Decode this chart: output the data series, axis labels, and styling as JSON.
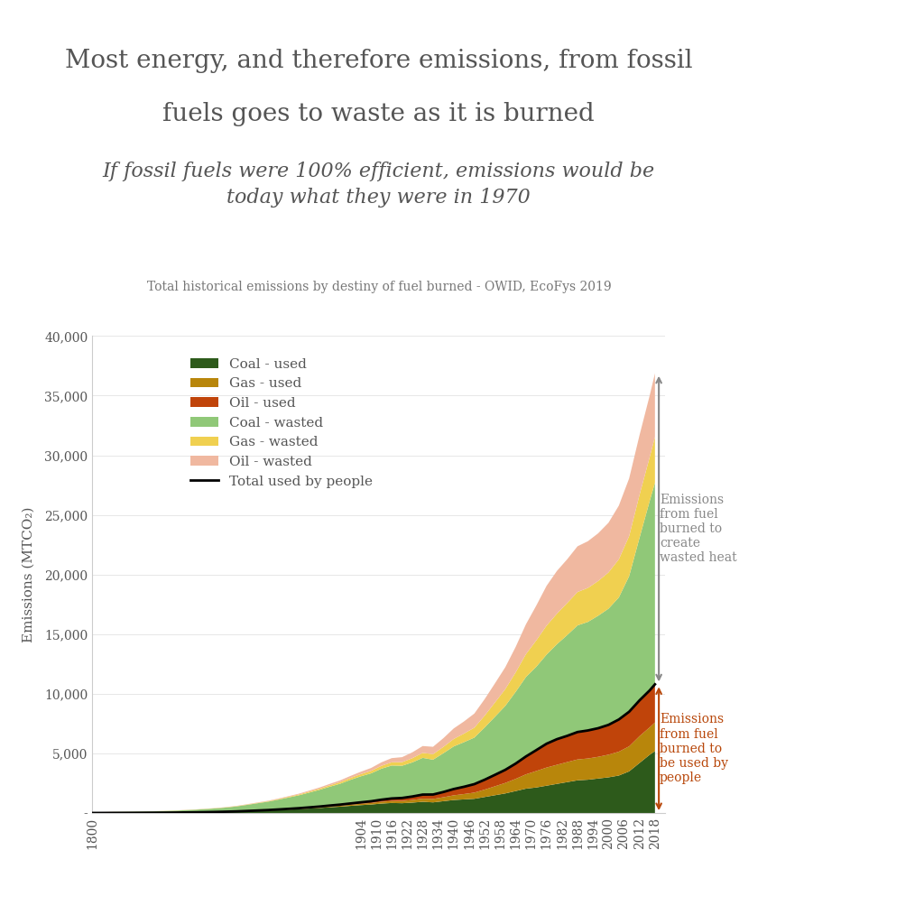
{
  "title_line1": "Most energy, and therefore emissions, from fossil",
  "title_line2": "fuels goes to waste as it is burned",
  "subtitle": "If fossil fuels were 100% efficient, emissions would be\ntoday what they were in 1970",
  "source": "Total historical emissions by destiny of fuel burned - OWID, EcoFys 2019",
  "ylabel": "Emissions (MTCO₂)",
  "colors": {
    "coal_used": "#2d5a1b",
    "gas_used": "#b8860b",
    "oil_used": "#c0440a",
    "coal_wasted": "#90c878",
    "gas_wasted": "#f0d050",
    "oil_wasted": "#f0b8a0"
  },
  "title_color": "#555555",
  "subtitle_color": "#555555",
  "source_color": "#777777",
  "arrow_wasted_color": "#888888",
  "arrow_used_color": "#b8470a",
  "background_color": "#ffffff",
  "ylim": [
    0,
    40000
  ],
  "yticks": [
    0,
    5000,
    10000,
    15000,
    20000,
    25000,
    30000,
    35000,
    40000
  ],
  "ytick_labels": [
    "-",
    "5,000",
    "10,000",
    "15,000",
    "20,000",
    "25,000",
    "30,000",
    "35,000",
    "40,000"
  ],
  "years": [
    1800,
    1804,
    1808,
    1812,
    1816,
    1820,
    1824,
    1828,
    1832,
    1836,
    1840,
    1844,
    1848,
    1852,
    1856,
    1860,
    1864,
    1868,
    1872,
    1876,
    1880,
    1884,
    1888,
    1892,
    1896,
    1900,
    1904,
    1908,
    1912,
    1916,
    1920,
    1924,
    1928,
    1932,
    1936,
    1940,
    1944,
    1948,
    1952,
    1956,
    1960,
    1964,
    1968,
    1972,
    1976,
    1980,
    1984,
    1988,
    1992,
    1996,
    2000,
    2004,
    2008,
    2012,
    2016,
    2018
  ],
  "coal_used_vals": [
    10,
    12,
    14,
    16,
    18,
    22,
    26,
    30,
    36,
    44,
    54,
    66,
    80,
    98,
    120,
    150,
    180,
    210,
    250,
    290,
    330,
    380,
    430,
    490,
    540,
    610,
    670,
    720,
    800,
    850,
    830,
    880,
    950,
    900,
    1000,
    1100,
    1150,
    1200,
    1350,
    1500,
    1650,
    1850,
    2050,
    2150,
    2300,
    2450,
    2600,
    2750,
    2800,
    2900,
    3000,
    3150,
    3500,
    4200,
    4900,
    5200
  ],
  "gas_used_vals": [
    2,
    2,
    3,
    3,
    4,
    4,
    5,
    5,
    6,
    7,
    8,
    9,
    11,
    13,
    15,
    18,
    21,
    25,
    30,
    36,
    43,
    52,
    62,
    74,
    88,
    100,
    115,
    130,
    150,
    170,
    190,
    220,
    260,
    290,
    330,
    390,
    450,
    520,
    620,
    750,
    880,
    1020,
    1200,
    1380,
    1520,
    1600,
    1680,
    1750,
    1780,
    1820,
    1900,
    2000,
    2100,
    2250,
    2300,
    2400
  ],
  "oil_used_vals": [
    1,
    1,
    2,
    2,
    2,
    3,
    3,
    4,
    4,
    5,
    6,
    7,
    8,
    10,
    12,
    15,
    18,
    22,
    27,
    33,
    40,
    49,
    59,
    71,
    85,
    100,
    120,
    145,
    175,
    210,
    250,
    295,
    345,
    370,
    440,
    530,
    610,
    710,
    830,
    960,
    1100,
    1280,
    1500,
    1750,
    2000,
    2150,
    2200,
    2300,
    2350,
    2400,
    2500,
    2700,
    2900,
    3000,
    3100,
    3200
  ],
  "coal_wasted_vals": [
    50,
    60,
    70,
    80,
    90,
    100,
    115,
    135,
    160,
    190,
    220,
    260,
    300,
    350,
    420,
    510,
    610,
    700,
    820,
    950,
    1080,
    1240,
    1400,
    1580,
    1750,
    1980,
    2180,
    2340,
    2600,
    2760,
    2700,
    2860,
    3080,
    2920,
    3250,
    3570,
    3740,
    3900,
    4380,
    4870,
    5360,
    6010,
    6660,
    6990,
    7470,
    7960,
    8450,
    8940,
    9100,
    9430,
    9740,
    10230,
    11370,
    13620,
    15900,
    16900
  ],
  "gas_wasted_vals": [
    5,
    5,
    6,
    6,
    7,
    7,
    8,
    9,
    10,
    11,
    13,
    15,
    18,
    21,
    25,
    29,
    34,
    40,
    48,
    58,
    69,
    83,
    99,
    118,
    140,
    160,
    184,
    208,
    240,
    272,
    304,
    352,
    416,
    464,
    528,
    624,
    720,
    832,
    992,
    1200,
    1408,
    1632,
    1920,
    2208,
    2432,
    2560,
    2688,
    2800,
    2848,
    2912,
    3040,
    3200,
    3360,
    3600,
    3680,
    3840
  ],
  "oil_wasted_vals": [
    3,
    3,
    4,
    4,
    5,
    5,
    6,
    7,
    8,
    9,
    10,
    12,
    14,
    17,
    20,
    25,
    30,
    37,
    45,
    55,
    67,
    82,
    98,
    118,
    142,
    167,
    200,
    242,
    292,
    350,
    417,
    492,
    575,
    617,
    733,
    883,
    1017,
    1183,
    1383,
    1600,
    1833,
    2133,
    2500,
    2917,
    3333,
    3583,
    3667,
    3833,
    3917,
    4000,
    4167,
    4500,
    4833,
    5000,
    5167,
    5333
  ],
  "total_used_vals": [
    13,
    15,
    19,
    21,
    24,
    29,
    34,
    39,
    46,
    56,
    68,
    82,
    99,
    121,
    147,
    183,
    219,
    257,
    307,
    359,
    413,
    481,
    551,
    635,
    713,
    810,
    905,
    995,
    1125,
    1230,
    1270,
    1395,
    1555,
    1560,
    1770,
    2020,
    2210,
    2430,
    2800,
    3210,
    3630,
    4150,
    4750,
    5280,
    5820,
    6200,
    6480,
    6800,
    6930,
    7120,
    7400,
    7850,
    8500,
    9450,
    10300,
    10800
  ],
  "xtick_years": [
    1800,
    1904,
    1910,
    1916,
    1922,
    1928,
    1934,
    1940,
    1946,
    1952,
    1958,
    1964,
    1970,
    1976,
    1982,
    1988,
    1994,
    2000,
    2006,
    2012,
    2018
  ]
}
